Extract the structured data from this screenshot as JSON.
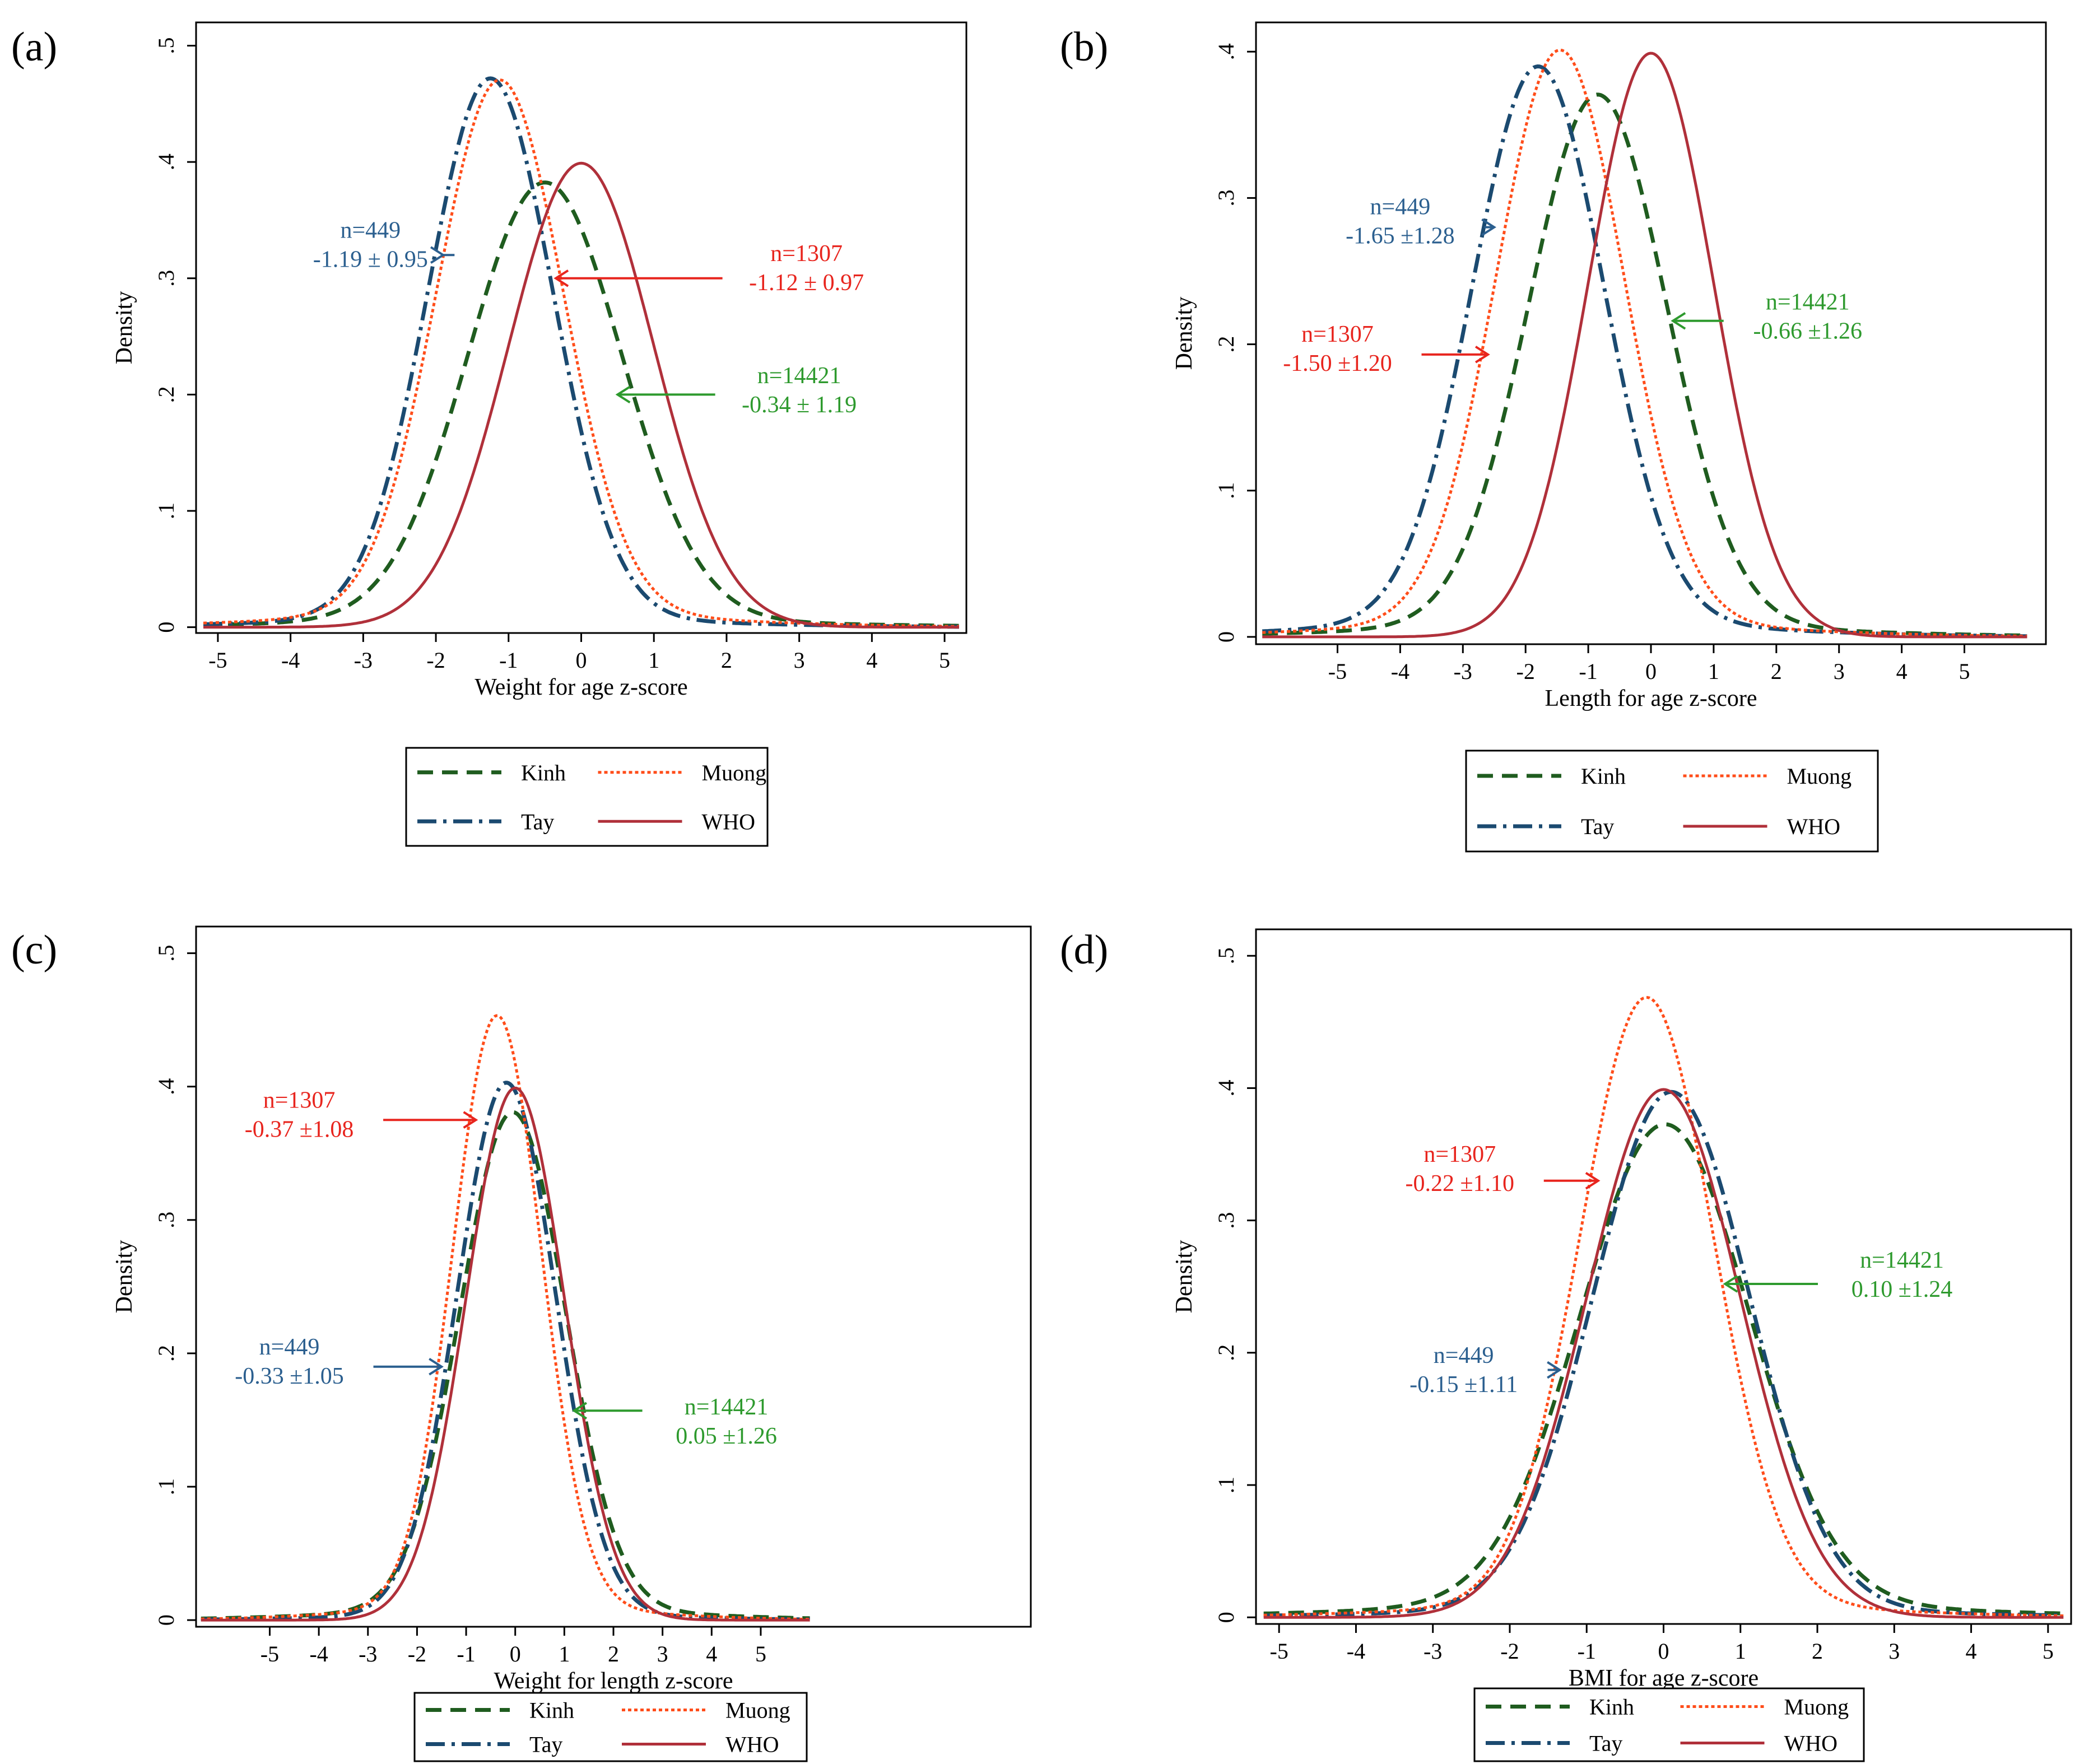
{
  "colors": {
    "kinh": "#1f5c1f",
    "tay": "#1b4a70",
    "muong": "#ff4d1a",
    "who": "#b0303a",
    "n14421_text": "#2e9a2e",
    "n1307_text": "#e8251e",
    "n449_text": "#2b5f8f"
  },
  "legend_labels": {
    "kinh": "Kinh",
    "muong": "Muong",
    "tay": "Tay",
    "who": "WHO"
  },
  "chart_data": [
    {
      "panel": "(a)",
      "type": "line",
      "xlabel": "Weight for age z-score",
      "ylabel": "Density",
      "xlim": [
        -5.3,
        5.3
      ],
      "ylim": [
        -0.005,
        0.52
      ],
      "xticks": [
        "-5",
        "-4",
        "-3",
        "-2",
        "-1",
        "0",
        "1",
        "2",
        "3",
        "4",
        "5"
      ],
      "yticks": [
        "0",
        ".1",
        ".2",
        ".3",
        ".4",
        ".5"
      ],
      "series": [
        {
          "name": "Kinh",
          "mean": -0.5,
          "sd": 1.06,
          "tails": 0.006
        },
        {
          "name": "Tay",
          "mean": -1.25,
          "sd": 0.86,
          "tails": 0.008
        },
        {
          "name": "Muong",
          "mean": -1.12,
          "sd": 0.87,
          "tails": 0.012
        },
        {
          "name": "WHO",
          "mean": 0,
          "sd": 1,
          "tails": 0
        }
      ],
      "annotations": [
        {
          "group": "n449",
          "n": "n=449",
          "stat": "-1.19 ± 0.95",
          "x": -2.9,
          "y": 0.33,
          "tip_x": -1.9,
          "tip_y": 0.32,
          "dir": "right"
        },
        {
          "group": "n1307",
          "n": "n=1307",
          "stat": "-1.12 ± 0.97",
          "x": 3.1,
          "y": 0.31,
          "tip_x": -0.35,
          "tip_y": 0.3,
          "dir": "left"
        },
        {
          "group": "n14421",
          "n": "n=14421",
          "stat": "-0.34 ± 1.19",
          "x": 3.0,
          "y": 0.205,
          "tip_x": 0.5,
          "tip_y": 0.2,
          "dir": "left"
        }
      ]
    },
    {
      "panel": "(b)",
      "type": "line",
      "xlabel": "Length for age z-score",
      "ylabel": "Density",
      "xlim": [
        -6.3,
        6.3
      ],
      "ylim": [
        -0.005,
        0.42
      ],
      "xticks": [
        "-5",
        "-4",
        "-3",
        "-2",
        "-1",
        "0",
        "1",
        "2",
        "3",
        "4",
        "5"
      ],
      "yticks": [
        "0",
        ".1",
        ".2",
        ".3",
        ".4"
      ],
      "series": [
        {
          "name": "Kinh",
          "mean": -0.85,
          "sd": 1.1,
          "tails": 0.008
        },
        {
          "name": "Tay",
          "mean": -1.8,
          "sd": 1.05,
          "tails": 0.01
        },
        {
          "name": "Muong",
          "mean": -1.45,
          "sd": 1.02,
          "tails": 0.01
        },
        {
          "name": "WHO",
          "mean": 0,
          "sd": 1,
          "tails": 0
        }
      ],
      "annotations": [
        {
          "group": "n449",
          "n": "n=449",
          "stat": "-1.65 ±1.28",
          "x": -4.0,
          "y": 0.285,
          "tip_x": -2.5,
          "tip_y": 0.28,
          "dir": "right"
        },
        {
          "group": "n1307",
          "n": "n=1307",
          "stat": "-1.50 ±1.20",
          "x": -5.0,
          "y": 0.198,
          "tip_x": -2.6,
          "tip_y": 0.193,
          "dir": "right"
        },
        {
          "group": "n14421",
          "n": "n=14421",
          "stat": "-0.66 ±1.26",
          "x": 2.5,
          "y": 0.22,
          "tip_x": 0.35,
          "tip_y": 0.216,
          "dir": "left"
        }
      ]
    },
    {
      "panel": "(c)",
      "type": "line",
      "xlabel": "Weight for length z-score",
      "ylabel": "Density",
      "xlim": [
        -6.5,
        10.5
      ],
      "ylim": [
        -0.005,
        0.52
      ],
      "xticks": [
        "-5",
        "-4",
        "-3",
        "-2",
        "-1",
        "0",
        "1",
        "2",
        "3",
        "4",
        "5"
      ],
      "yticks": [
        "0",
        ".1",
        ".2",
        ".3",
        ".4",
        ".5"
      ],
      "series": [
        {
          "name": "Kinh",
          "mean": -0.05,
          "sd": 1.07,
          "tails": 0.008
        },
        {
          "name": "Tay",
          "mean": -0.18,
          "sd": 1.0,
          "tails": 0.004
        },
        {
          "name": "Muong",
          "mean": -0.37,
          "sd": 0.9,
          "tails": 0.01
        },
        {
          "name": "WHO",
          "mean": 0,
          "sd": 1,
          "tails": 0
        }
      ],
      "annotations": [
        {
          "group": "n1307",
          "n": "n=1307",
          "stat": "-0.37 ±1.08",
          "x": -4.4,
          "y": 0.38,
          "tip_x": -0.8,
          "tip_y": 0.375,
          "dir": "right"
        },
        {
          "group": "n449",
          "n": "n=449",
          "stat": "-0.33 ±1.05",
          "x": -4.6,
          "y": 0.195,
          "tip_x": -1.5,
          "tip_y": 0.19,
          "dir": "right"
        },
        {
          "group": "n14421",
          "n": "n=14421",
          "stat": "0.05 ±1.26",
          "x": 4.3,
          "y": 0.15,
          "tip_x": 1.2,
          "tip_y": 0.157,
          "dir": "left"
        }
      ]
    },
    {
      "panel": "(d)",
      "type": "line",
      "xlabel": "BMI for age z-score",
      "ylabel": "Density",
      "xlim": [
        -5.3,
        5.3
      ],
      "ylim": [
        -0.005,
        0.52
      ],
      "xticks": [
        "-5",
        "-4",
        "-3",
        "-2",
        "-1",
        "0",
        "1",
        "2",
        "3",
        "4",
        "5"
      ],
      "yticks": [
        "0",
        ".1",
        ".2",
        ".3",
        ".4",
        ".5"
      ],
      "series": [
        {
          "name": "Kinh",
          "mean": 0.02,
          "sd": 1.1,
          "tails": 0.01
        },
        {
          "name": "Tay",
          "mean": 0.1,
          "sd": 1.02,
          "tails": 0.006
        },
        {
          "name": "Muong",
          "mean": -0.22,
          "sd": 0.87,
          "tails": 0.01
        },
        {
          "name": "WHO",
          "mean": 0,
          "sd": 1,
          "tails": 0
        }
      ],
      "annotations": [
        {
          "group": "n1307",
          "n": "n=1307",
          "stat": "-0.22 ±1.10",
          "x": -2.65,
          "y": 0.34,
          "tip_x": -0.85,
          "tip_y": 0.33,
          "dir": "right"
        },
        {
          "group": "n14421",
          "n": "n=14421",
          "stat": "0.10 ±1.24",
          "x": 3.1,
          "y": 0.26,
          "tip_x": 0.8,
          "tip_y": 0.252,
          "dir": "left"
        },
        {
          "group": "n449",
          "n": "n=449",
          "stat": "-0.15 ±1.11",
          "x": -2.6,
          "y": 0.188,
          "tip_x": -1.35,
          "tip_y": 0.187,
          "dir": "right"
        }
      ]
    }
  ]
}
